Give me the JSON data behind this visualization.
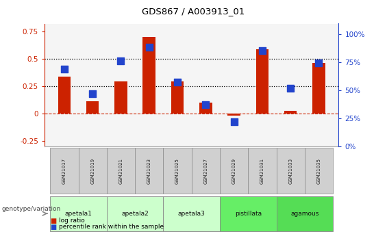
{
  "title": "GDS867 / A003913_01",
  "samples": [
    "GSM21017",
    "GSM21019",
    "GSM21021",
    "GSM21023",
    "GSM21025",
    "GSM21027",
    "GSM21029",
    "GSM21031",
    "GSM21033",
    "GSM21035"
  ],
  "log_ratio": [
    0.335,
    0.11,
    0.295,
    0.7,
    0.295,
    0.1,
    -0.02,
    0.585,
    0.025,
    0.46
  ],
  "percentile_rank": [
    0.69,
    0.47,
    0.76,
    0.88,
    0.57,
    0.37,
    0.22,
    0.85,
    0.52,
    0.74
  ],
  "groups": [
    {
      "label": "apetala1",
      "start": 0,
      "end": 2,
      "color": "#ccffcc"
    },
    {
      "label": "apetala2",
      "start": 2,
      "end": 4,
      "color": "#ccffcc"
    },
    {
      "label": "apetala3",
      "start": 4,
      "end": 6,
      "color": "#ccffcc"
    },
    {
      "label": "pistillata",
      "start": 6,
      "end": 8,
      "color": "#66ee66"
    },
    {
      "label": "agamous",
      "start": 8,
      "end": 10,
      "color": "#55dd55"
    }
  ],
  "bar_color": "#cc2200",
  "dot_color": "#2244cc",
  "left_ylim": [
    -0.3,
    0.82
  ],
  "right_ylim": [
    0.0,
    1.093
  ],
  "left_yticks": [
    -0.25,
    0.0,
    0.25,
    0.5,
    0.75
  ],
  "right_yticks": [
    0.0,
    0.25,
    0.5,
    0.75,
    1.0
  ],
  "right_yticklabels": [
    "0%",
    "25%",
    "50%",
    "75%",
    "100%"
  ],
  "hlines": [
    0.25,
    0.5
  ],
  "bg_color": "#ffffff",
  "bar_width": 0.45,
  "dot_size": 45,
  "legend_label_ratio": "log ratio",
  "legend_label_percentile": "percentile rank within the sample",
  "genotype_label": "genotype/variation"
}
